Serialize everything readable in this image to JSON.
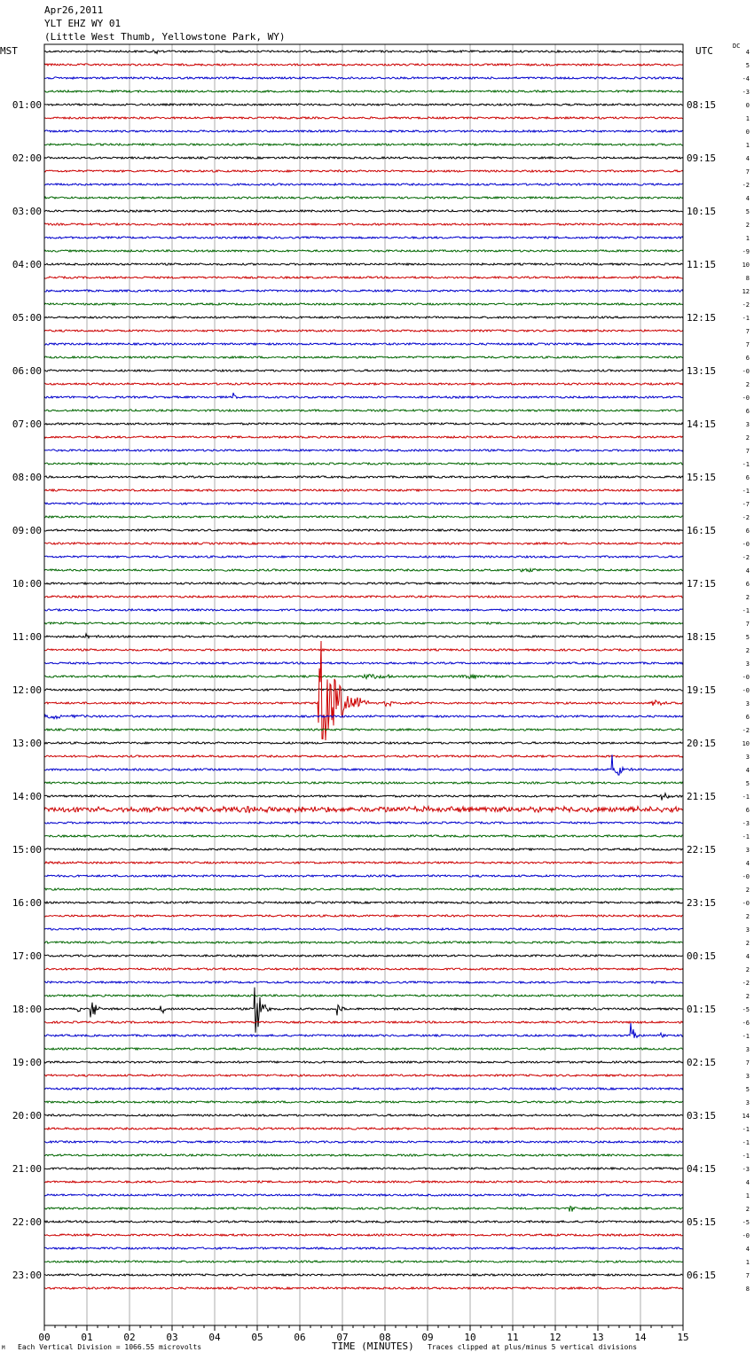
{
  "header": {
    "date": "Apr26,2011",
    "station": "YLT EHZ WY 01",
    "location": "(Little West Thumb, Yellowstone Park, WY)"
  },
  "left_zone": "MST",
  "right_zone": "UTC",
  "dc_label": "DC",
  "footer": {
    "scale": "Each Vertical Division = 1066.55 microvolts",
    "clip": "Traces clipped at plus/minus 5 vertical divisions",
    "mark": "M"
  },
  "colors": {
    "trace": [
      "#000000",
      "#cc0000",
      "#0000cc",
      "#006600"
    ],
    "grid": "#8a8a8a",
    "frame": "#000000"
  },
  "chart_data": {
    "type": "line",
    "xlabel": "TIME (MINUTES)",
    "xlim": [
      0,
      15
    ],
    "x_ticks": [
      "00",
      "01",
      "02",
      "03",
      "04",
      "05",
      "06",
      "07",
      "08",
      "09",
      "10",
      "11",
      "12",
      "13",
      "14",
      "15"
    ],
    "traces_per_hour": 4,
    "left_hour_labels": [
      "01:00",
      "02:00",
      "03:00",
      "04:00",
      "05:00",
      "06:00",
      "07:00",
      "08:00",
      "09:00",
      "10:00",
      "11:00",
      "12:00",
      "13:00",
      "14:00",
      "15:00",
      "16:00",
      "17:00",
      "18:00",
      "19:00",
      "20:00",
      "21:00",
      "22:00",
      "23:00"
    ],
    "right_hour_labels": [
      "08:15",
      "09:15",
      "10:15",
      "11:15",
      "12:15",
      "13:15",
      "14:15",
      "15:15",
      "16:15",
      "17:15",
      "18:15",
      "19:15",
      "20:15",
      "21:15",
      "22:15",
      "23:15",
      "00:15",
      "01:15",
      "02:15",
      "03:15",
      "04:15",
      "05:15",
      "06:15"
    ],
    "dc_offsets": [
      "4",
      "5",
      "-4",
      "-3",
      "0",
      "1",
      "0",
      "1",
      "4",
      "7",
      "-2",
      "4",
      "5",
      "2",
      "1",
      "-9",
      "10",
      "8",
      "12",
      "-2",
      "-1",
      "7",
      "7",
      "6",
      "-0",
      "2",
      "-0",
      "6",
      "3",
      "2",
      "7",
      "-1",
      "6",
      "-1",
      "-7",
      "-2",
      "6",
      "-0",
      "-2",
      "4",
      "6",
      "2",
      "-1",
      "7",
      "5",
      "2",
      "3",
      "-0",
      "-0",
      "3",
      "6",
      "-2",
      "10",
      "3",
      "4",
      "5",
      "-1",
      "6",
      "-3",
      "-1",
      "3",
      "4",
      "-0",
      "2",
      "-0",
      "2",
      "3",
      "2",
      "4",
      "2",
      "-2",
      "2",
      "-5",
      "-6",
      "-1",
      "3",
      "7",
      "3",
      "5",
      "3",
      "14",
      "-1",
      "-1",
      "-1",
      "-3",
      "4",
      "1",
      "2",
      "-5",
      "-0",
      "4",
      "1",
      "7",
      "8"
    ],
    "events": [
      {
        "trace": 0,
        "minute": 2.6,
        "amplitude": 0.5,
        "duration": 0.3
      },
      {
        "trace": 26,
        "minute": 4.45,
        "amplitude": 0.7,
        "duration": 0.15
      },
      {
        "trace": 31,
        "minute": 2.6,
        "amplitude": 0.3,
        "duration": 0.4
      },
      {
        "trace": 39,
        "minute": 11.2,
        "amplitude": 0.25,
        "duration": 1.2
      },
      {
        "trace": 44,
        "minute": 1.0,
        "amplitude": 0.3,
        "duration": 0.6
      },
      {
        "trace": 47,
        "minute": 7.5,
        "amplitude": 0.35,
        "duration": 2.5
      },
      {
        "trace": 47,
        "minute": 9.8,
        "amplitude": 0.3,
        "duration": 1.4
      },
      {
        "trace": 49,
        "minute": 8.0,
        "amplitude": 0.4,
        "duration": 1.0
      },
      {
        "trace": 49,
        "minute": 14.3,
        "amplitude": 0.5,
        "duration": 0.6
      },
      {
        "trace": 50,
        "minute": 0.0,
        "amplitude": 0.4,
        "duration": 2.2
      },
      {
        "trace": 49,
        "minute": 6.45,
        "amplitude": 10,
        "duration": 1.2
      },
      {
        "trace": 54,
        "minute": 13.35,
        "amplitude": 2.2,
        "duration": 0.5
      },
      {
        "trace": 56,
        "minute": 14.5,
        "amplitude": 0.6,
        "duration": 0.5
      },
      {
        "trace": 57,
        "minute": 0.0,
        "amplitude": 0.3,
        "duration": 15
      },
      {
        "trace": 57,
        "minute": 4.8,
        "amplitude": 0.4,
        "duration": 0.8
      },
      {
        "trace": 72,
        "minute": 0.8,
        "amplitude": 0.6,
        "duration": 0.2
      },
      {
        "trace": 72,
        "minute": 1.1,
        "amplitude": 3,
        "duration": 0.25
      },
      {
        "trace": 72,
        "minute": 2.75,
        "amplitude": 1.0,
        "duration": 0.2
      },
      {
        "trace": 72,
        "minute": 4.95,
        "amplitude": 5,
        "duration": 0.4
      },
      {
        "trace": 72,
        "minute": 6.9,
        "amplitude": 1.1,
        "duration": 0.2
      },
      {
        "trace": 74,
        "minute": 13.8,
        "amplitude": 2.0,
        "duration": 0.2
      },
      {
        "trace": 74,
        "minute": 14.5,
        "amplitude": 0.4,
        "duration": 0.3
      },
      {
        "trace": 87,
        "minute": 12.35,
        "amplitude": 0.9,
        "duration": 0.3
      }
    ]
  }
}
